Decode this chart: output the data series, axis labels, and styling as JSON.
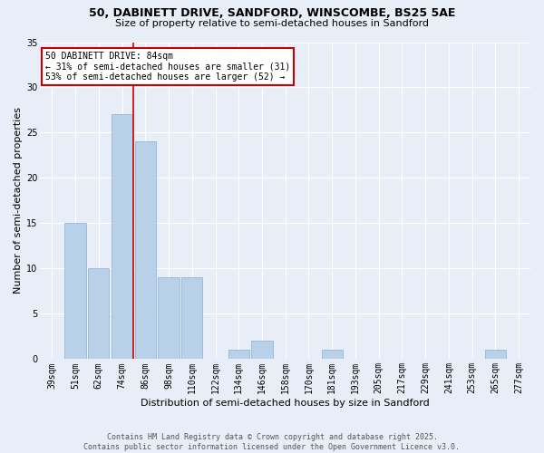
{
  "title_line1": "50, DABINETT DRIVE, SANDFORD, WINSCOMBE, BS25 5AE",
  "title_line2": "Size of property relative to semi-detached houses in Sandford",
  "xlabel": "Distribution of semi-detached houses by size in Sandford",
  "ylabel": "Number of semi-detached properties",
  "categories": [
    "39sqm",
    "51sqm",
    "62sqm",
    "74sqm",
    "86sqm",
    "98sqm",
    "110sqm",
    "122sqm",
    "134sqm",
    "146sqm",
    "158sqm",
    "170sqm",
    "181sqm",
    "193sqm",
    "205sqm",
    "217sqm",
    "229sqm",
    "241sqm",
    "253sqm",
    "265sqm",
    "277sqm"
  ],
  "values": [
    0,
    15,
    10,
    27,
    24,
    9,
    9,
    0,
    1,
    2,
    0,
    0,
    1,
    0,
    0,
    0,
    0,
    0,
    0,
    1,
    0
  ],
  "bar_color": "#b8d0e8",
  "bar_edge_color": "#8ab0d0",
  "property_line_x": 3.5,
  "annotation_title": "50 DABINETT DRIVE: 84sqm",
  "annotation_line2": "← 31% of semi-detached houses are smaller (31)",
  "annotation_line3": "53% of semi-detached houses are larger (52) →",
  "annotation_box_color": "#ffffff",
  "annotation_box_edge": "#cc0000",
  "property_line_color": "#cc0000",
  "footer_line1": "Contains HM Land Registry data © Crown copyright and database right 2025.",
  "footer_line2": "Contains public sector information licensed under the Open Government Licence v3.0.",
  "bg_color": "#e8eef8",
  "plot_bg_color": "#e8eef8",
  "ylim": [
    0,
    35
  ],
  "yticks": [
    0,
    5,
    10,
    15,
    20,
    25,
    30,
    35
  ],
  "title_fontsize": 9,
  "subtitle_fontsize": 8,
  "xlabel_fontsize": 8,
  "ylabel_fontsize": 8,
  "tick_fontsize": 7,
  "annot_fontsize": 7,
  "footer_fontsize": 6
}
